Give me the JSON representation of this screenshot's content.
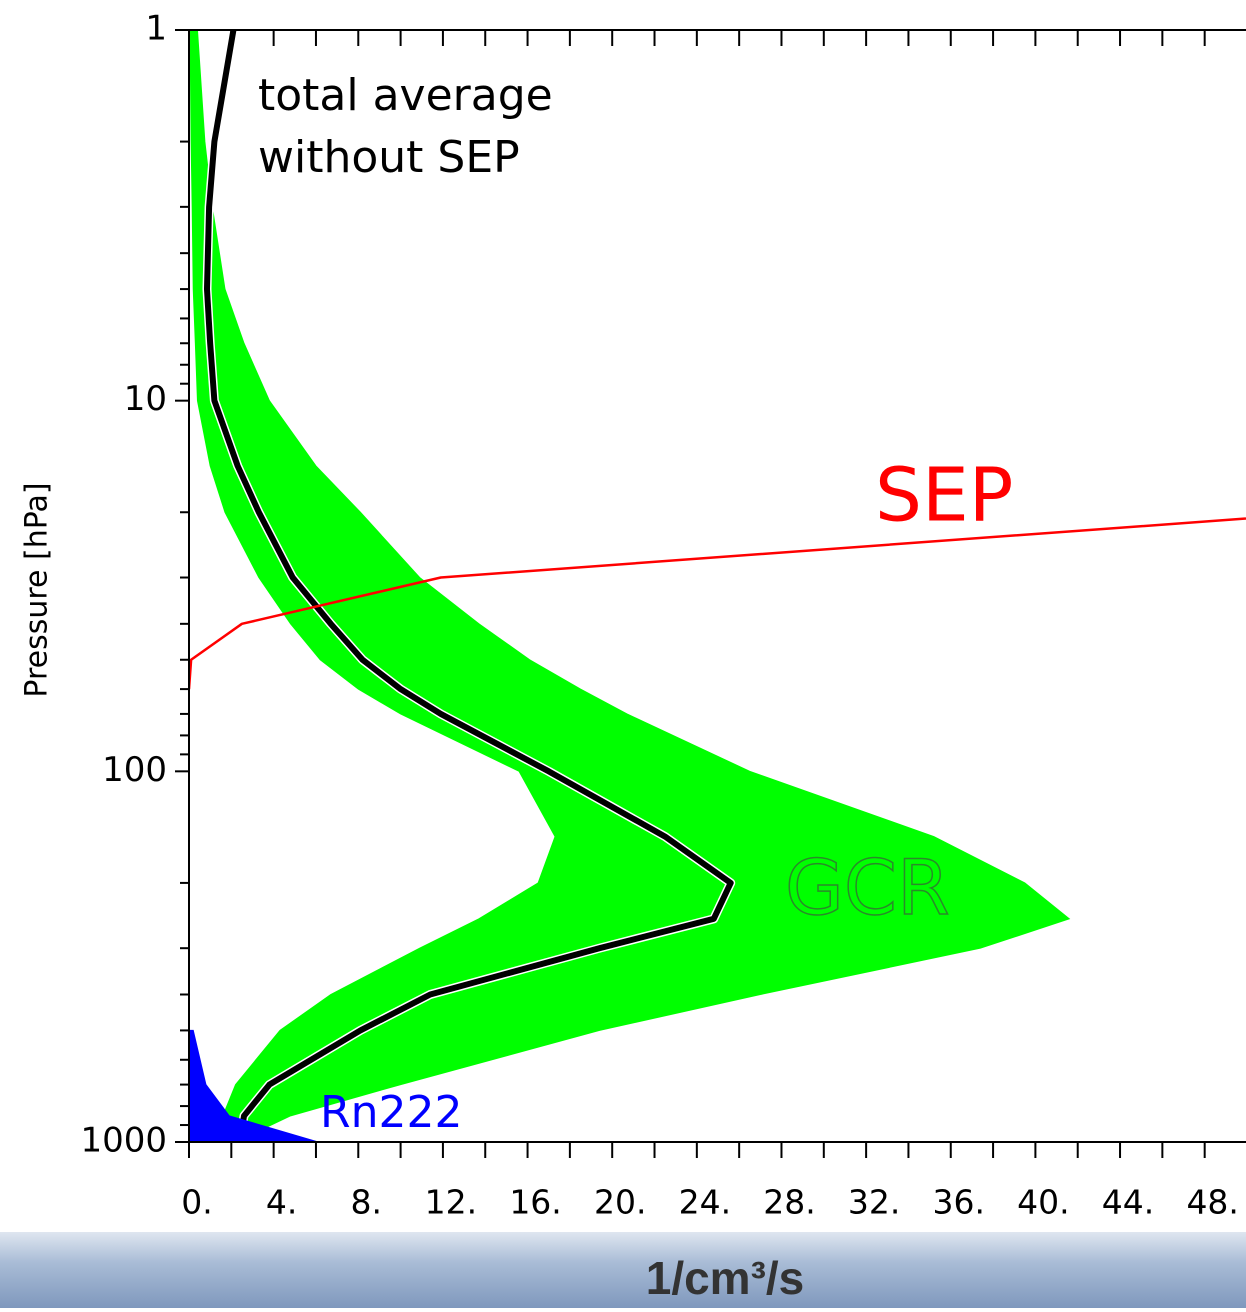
{
  "chart_data": {
    "type": "line",
    "orientation": "horizontal",
    "x_label": "1/cm³/s",
    "y_label": "Pressure [hPa]",
    "annotations": [
      "total average",
      "without SEP"
    ],
    "xlim": [
      0,
      50
    ],
    "xticks": [
      {
        "value": 0,
        "label": "0."
      },
      {
        "value": 4,
        "label": "4."
      },
      {
        "value": 8,
        "label": "8."
      },
      {
        "value": 12,
        "label": "12."
      },
      {
        "value": 16,
        "label": "16."
      },
      {
        "value": 20,
        "label": "20."
      },
      {
        "value": 24,
        "label": "24."
      },
      {
        "value": 28,
        "label": "28."
      },
      {
        "value": 32,
        "label": "32."
      },
      {
        "value": 36,
        "label": "36."
      },
      {
        "value": 40,
        "label": "40."
      },
      {
        "value": 44,
        "label": "44."
      },
      {
        "value": 48,
        "label": "48."
      }
    ],
    "x_minor_ticks": [
      2,
      6,
      10,
      14,
      18,
      22,
      26,
      30,
      34,
      38,
      42,
      46,
      50
    ],
    "ylim": [
      1,
      1000
    ],
    "y_log": true,
    "y_inverted": true,
    "yticks": [
      1,
      10,
      100,
      1000
    ],
    "y_minor_ticks": [
      2,
      3,
      4,
      5,
      6,
      7,
      8,
      9,
      20,
      30,
      40,
      50,
      60,
      70,
      80,
      90,
      200,
      300,
      400,
      500,
      600,
      700,
      800,
      900
    ],
    "pressure": [
      1,
      2,
      3,
      5,
      7,
      10,
      15,
      20,
      30,
      40,
      50,
      60,
      70,
      100,
      150,
      200,
      250,
      300,
      400,
      500,
      700,
      850,
      1000
    ],
    "bands": [
      {
        "name": "GCR",
        "color": "#00ff00",
        "label_color": "#2a8a2a",
        "lower": [
          0.05,
          0.1,
          0.15,
          0.2,
          0.3,
          0.4,
          1.0,
          1.7,
          3.3,
          4.8,
          6.2,
          8,
          10,
          15.6,
          17.3,
          16.5,
          13.7,
          10.9,
          6.7,
          4.3,
          2.2,
          1.6,
          1.4
        ],
        "upper": [
          0.4,
          0.75,
          1.1,
          1.7,
          2.6,
          3.8,
          6.0,
          8.1,
          10.9,
          13.7,
          16.1,
          18.5,
          20.7,
          26.5,
          35.2,
          39.5,
          41.6,
          37.4,
          27,
          19.4,
          10,
          4.8,
          2.2
        ]
      }
    ],
    "series": [
      {
        "color": "#000000",
        "values": [
          2.1,
          1.2,
          0.95,
          0.85,
          1.0,
          1.2,
          2.3,
          3.3,
          4.9,
          6.7,
          8.2,
          10,
          11.9,
          17,
          22.5,
          25.6,
          24.8,
          19.4,
          11.4,
          8.1,
          3.8,
          2.6,
          2.4
        ]
      },
      {
        "name": "SEP",
        "color": "#ff0000",
        "values": [
          null,
          null,
          null,
          null,
          null,
          null,
          null,
          54,
          11.9,
          2.5,
          0.1,
          0,
          null,
          null,
          null,
          null,
          null,
          null,
          null,
          null,
          null,
          null,
          null
        ]
      },
      {
        "name": "Rn222",
        "color": "#0000ff",
        "fill": true,
        "values": [
          null,
          null,
          null,
          null,
          null,
          null,
          null,
          null,
          null,
          null,
          null,
          null,
          null,
          null,
          null,
          null,
          null,
          null,
          null,
          0.2,
          0.8,
          1.9,
          6.1
        ]
      }
    ]
  }
}
